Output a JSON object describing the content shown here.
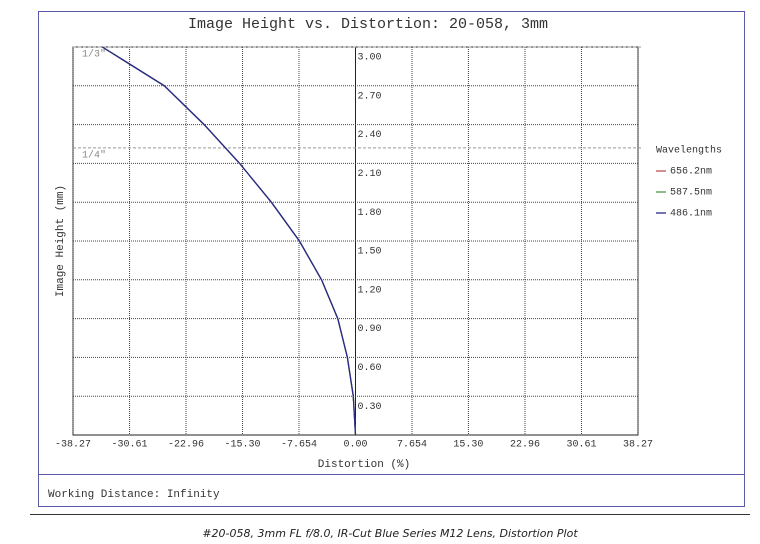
{
  "chart_data": {
    "type": "line",
    "title": "Image Height vs. Distortion: 20-058, 3mm",
    "xlabel": "Distortion (%)",
    "ylabel": "Image Height (mm)",
    "legend_title": "Wavelengths",
    "footer": "Working Distance: Infinity",
    "caption": "#20-058, 3mm FL f/8.0, IR-Cut Blue Series M12 Lens, Distortion Plot",
    "xlim": [
      -38.27,
      38.27
    ],
    "ylim": [
      0,
      3.0
    ],
    "xticks": [
      -38.27,
      -30.61,
      -22.96,
      {
        "value": -15.3,
        "label": "-15.30"
      },
      -7.654,
      {
        "value": 0,
        "label": "0.00"
      },
      7.654,
      {
        "value": 15.3,
        "label": "15.30"
      },
      22.96,
      30.61,
      38.27
    ],
    "yticks": [
      {
        "value": 0.3,
        "label": "0.30"
      },
      {
        "value": 0.6,
        "label": "0.60"
      },
      {
        "value": 0.9,
        "label": "0.90"
      },
      {
        "value": 1.2,
        "label": "1.20"
      },
      {
        "value": 1.5,
        "label": "1.50"
      },
      {
        "value": 1.8,
        "label": "1.80"
      },
      {
        "value": 2.1,
        "label": "2.10"
      },
      {
        "value": 2.4,
        "label": "2.40"
      },
      {
        "value": 2.7,
        "label": "2.70"
      },
      {
        "value": 3.0,
        "label": "3.00"
      }
    ],
    "grid": true,
    "annotations": [
      {
        "label": "1/3\"",
        "value": 3.0
      },
      {
        "label": "1/4\"",
        "value": 2.22
      }
    ],
    "series": [
      {
        "name": "656.2nm",
        "color": "#c0504d",
        "x": [
          0,
          -0.3,
          -1.1,
          -2.4,
          -4.6,
          -7.6,
          -11.4,
          -15.7,
          -20.5,
          -25.9,
          -34.3
        ],
        "values": [
          0,
          0.3,
          0.6,
          0.9,
          1.2,
          1.5,
          1.8,
          2.1,
          2.4,
          2.7,
          3.0
        ]
      },
      {
        "name": "587.5nm",
        "color": "#4f9a4f",
        "x": [
          0,
          -0.3,
          -1.1,
          -2.4,
          -4.6,
          -7.6,
          -11.4,
          -15.7,
          -20.5,
          -25.9,
          -34.3
        ],
        "values": [
          0,
          0.3,
          0.6,
          0.9,
          1.2,
          1.5,
          1.8,
          2.1,
          2.4,
          2.7,
          3.0
        ]
      },
      {
        "name": "486.1nm",
        "color": "#2a2a8c",
        "x": [
          0,
          -0.3,
          -1.1,
          -2.4,
          -4.6,
          -7.6,
          -11.4,
          -15.7,
          -20.5,
          -25.9,
          -34.3
        ],
        "values": [
          0,
          0.3,
          0.6,
          0.9,
          1.2,
          1.5,
          1.8,
          2.1,
          2.4,
          2.7,
          3.0
        ]
      }
    ]
  }
}
